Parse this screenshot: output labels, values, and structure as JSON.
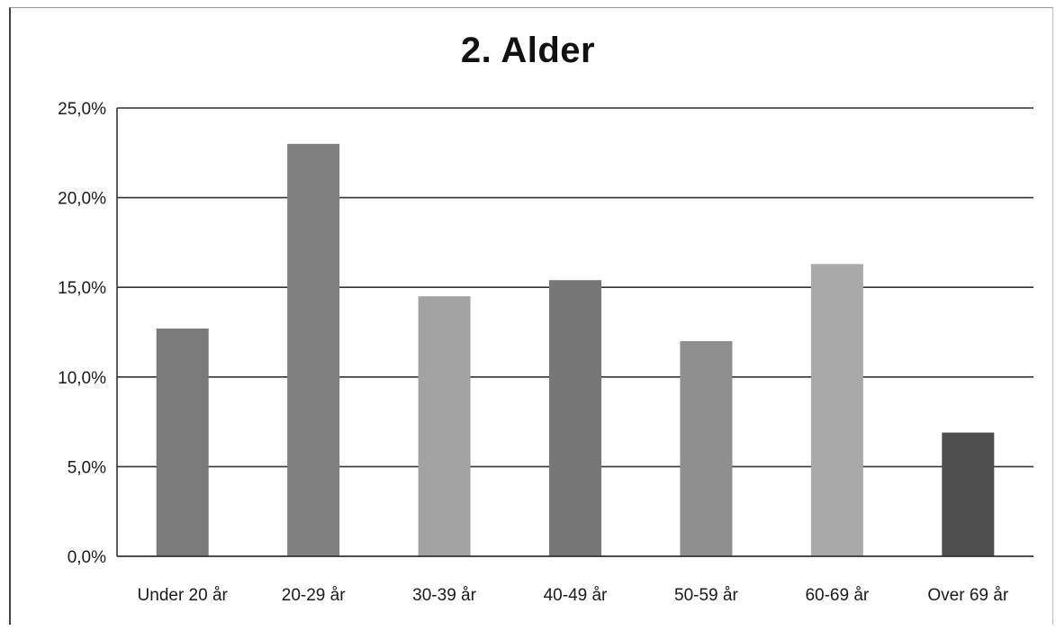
{
  "chart_data": {
    "type": "bar",
    "title": "2. Alder",
    "xlabel": "",
    "ylabel": "",
    "categories": [
      "Under 20 år",
      "20-29 år",
      "30-39 år",
      "40-49 år",
      "50-59 år",
      "60-69 år",
      "Over 69 år"
    ],
    "values": [
      12.7,
      23.0,
      14.5,
      15.4,
      12.0,
      16.3,
      6.9
    ],
    "ylim": [
      0,
      25
    ],
    "yticks": [
      0,
      5,
      10,
      15,
      20,
      25
    ],
    "ytick_labels": [
      "0,0%",
      "5,0%",
      "10,0%",
      "15,0%",
      "20,0%",
      "25,0%"
    ],
    "grid": true,
    "legend": "none",
    "bar_colors": [
      "#7a7a7a",
      "#808080",
      "#a3a3a3",
      "#777777",
      "#8f8f8f",
      "#a9a9a9",
      "#4f4f4f"
    ]
  }
}
